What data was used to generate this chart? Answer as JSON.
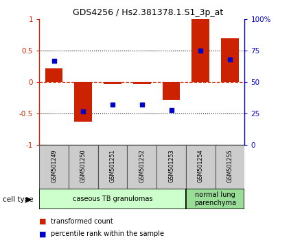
{
  "title": "GDS4256 / Hs2.381378.1.S1_3p_at",
  "samples": [
    "GSM501249",
    "GSM501250",
    "GSM501251",
    "GSM501252",
    "GSM501253",
    "GSM501254",
    "GSM501255"
  ],
  "transformed_counts": [
    0.22,
    -0.63,
    -0.03,
    -0.03,
    -0.28,
    1.0,
    0.7
  ],
  "percentile_ranks_pct": [
    67,
    27,
    32,
    32,
    28,
    75,
    68
  ],
  "ylim": [
    -1,
    1
  ],
  "yticks": [
    -1,
    -0.5,
    0,
    0.5,
    1
  ],
  "ytick_labels": [
    "-1",
    "-0.5",
    "0",
    "0.5",
    "1"
  ],
  "right_yticks": [
    0,
    25,
    50,
    75,
    100
  ],
  "right_ytick_labels": [
    "0",
    "25",
    "50",
    "75",
    "100%"
  ],
  "bar_color": "#cc2200",
  "dot_color": "#0000cc",
  "background_color": "#ffffff",
  "groups": [
    {
      "label": "caseous TB granulomas",
      "indices": [
        0,
        1,
        2,
        3,
        4
      ],
      "color": "#ccffcc"
    },
    {
      "label": "normal lung\nparenchyma",
      "indices": [
        5,
        6
      ],
      "color": "#99dd99"
    }
  ],
  "cell_type_label": "cell type",
  "legend_items": [
    {
      "label": "transformed count",
      "color": "#cc2200"
    },
    {
      "label": "percentile rank within the sample",
      "color": "#0000cc"
    }
  ],
  "sample_box_color": "#cccccc",
  "n_samples": 7
}
